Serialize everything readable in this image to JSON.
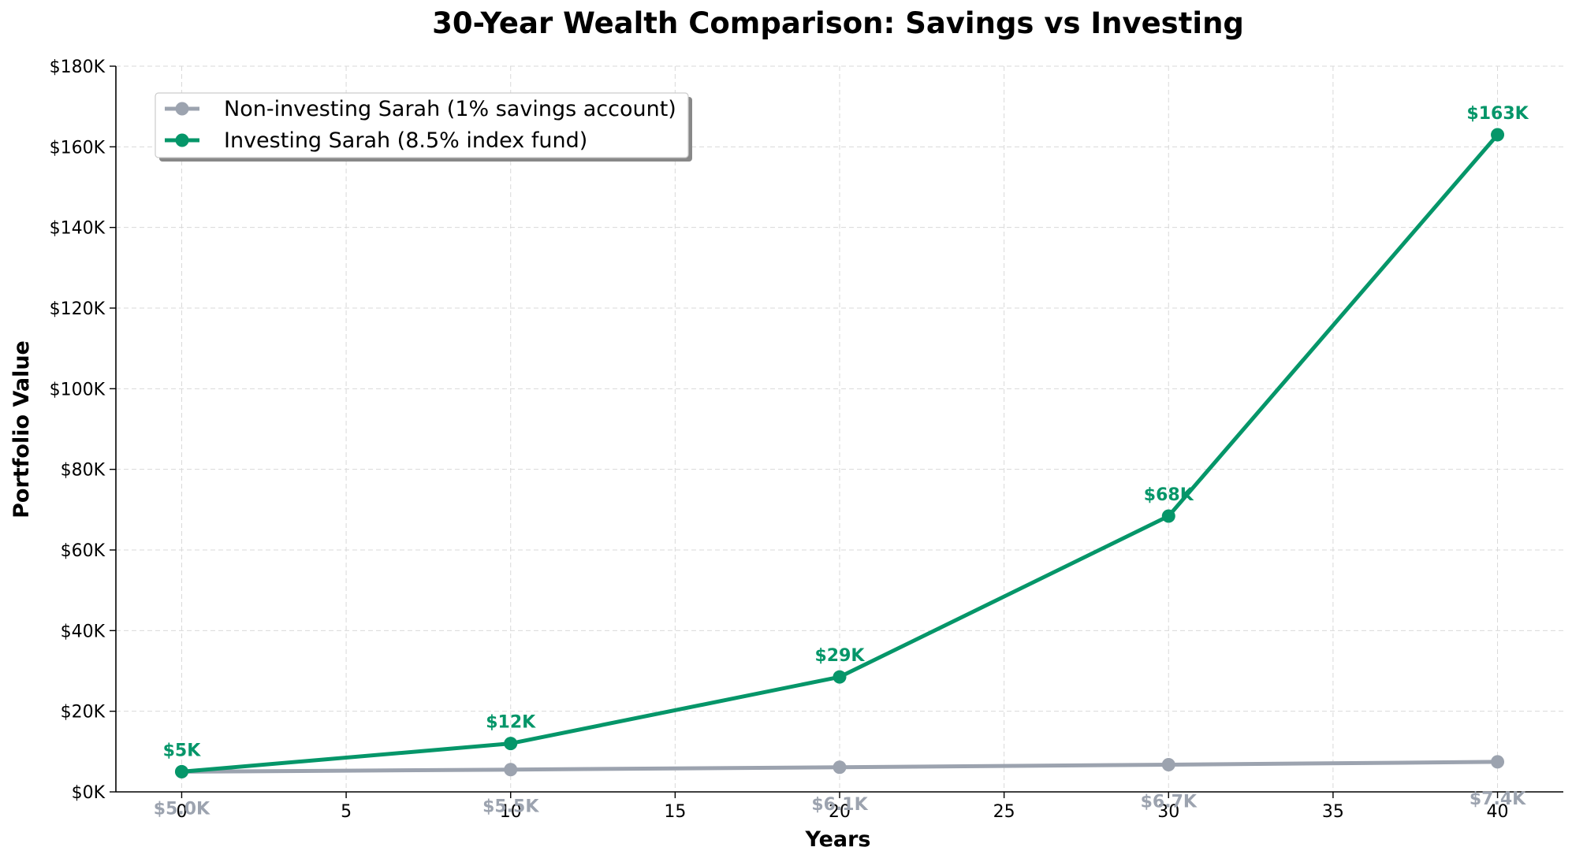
{
  "chart_data": {
    "type": "line",
    "title": "30-Year Wealth Comparison: Savings vs Investing",
    "xlabel": "Years",
    "ylabel": "Portfolio Value",
    "xlim": [
      -2,
      42
    ],
    "ylim": [
      0,
      180000
    ],
    "x_ticks": [
      0,
      5,
      10,
      15,
      20,
      25,
      30,
      35,
      40
    ],
    "y_ticks": [
      0,
      20000,
      40000,
      60000,
      80000,
      100000,
      120000,
      140000,
      160000,
      180000
    ],
    "y_tick_labels": [
      "$0K",
      "$20K",
      "$40K",
      "$60K",
      "$80K",
      "$100K",
      "$120K",
      "$140K",
      "$160K",
      "$180K"
    ],
    "grid": true,
    "legend_position": "top-left",
    "x": [
      0,
      10,
      20,
      30,
      40
    ],
    "series": [
      {
        "name": "Non-investing Sarah (1% savings account)",
        "color": "#9ca3af",
        "values": [
          5000,
          5523,
          6101,
          6739,
          7444
        ],
        "labels": [
          "$5.0K",
          "$5.5K",
          "$6.1K",
          "$6.7K",
          "$7.4K"
        ]
      },
      {
        "name": "Investing Sarah (8.5% index fund)",
        "color": "#059669",
        "values": [
          5000,
          12000,
          28500,
          68400,
          163000
        ],
        "labels": [
          "$5K",
          "$12K",
          "$29K",
          "$68K",
          "$163K"
        ]
      }
    ]
  }
}
